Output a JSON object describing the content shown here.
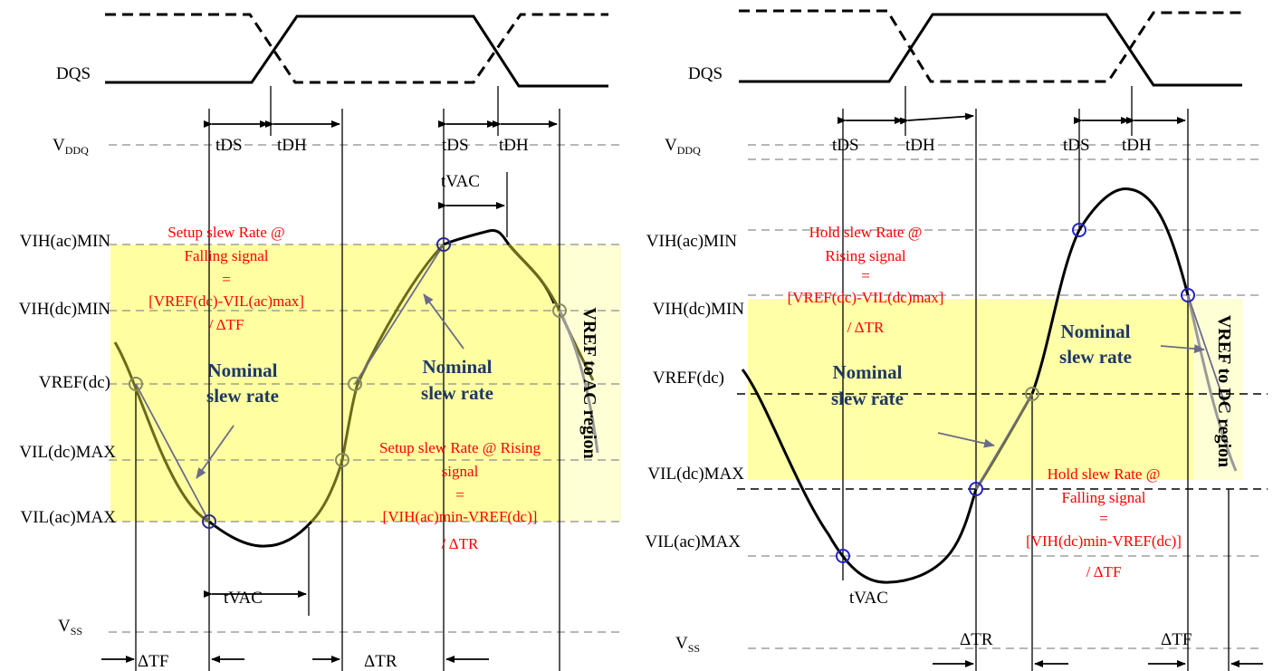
{
  "left_panel": {
    "dqs_label": "DQS",
    "vddq_main": "V",
    "vddq_sub": "DDQ",
    "vss_main": "V",
    "vss_sub": "SS",
    "levels": [
      "VIH(ac)MIN",
      "VIH(dc)MIN",
      "VREF(dc)",
      "VIL(dc)MAX",
      "VIL(ac)MAX"
    ],
    "timing": {
      "tds_1": "tDS",
      "tdh_1": "tDH",
      "tds_2": "tDS",
      "tdh_2": "tDH",
      "tvac_top": "tVAC",
      "tvac_bottom": "tVAC",
      "dtf": "ΔTF",
      "dtr": "ΔTR"
    },
    "setup_falling": [
      "Setup slew Rate @",
      "Falling signal",
      "=",
      "[VREF(dc)-VIL(ac)max]",
      "/ ΔTF"
    ],
    "setup_rising": [
      "Setup slew Rate @ Rising",
      "signal",
      "=",
      "[VIH(ac)min-VREF(dc)]",
      "/ ΔTR"
    ],
    "nominal_1": [
      "Nominal",
      "slew rate"
    ],
    "nominal_2": [
      "Nominal",
      "slew rate"
    ],
    "region": "VREF to AC region",
    "colors": {
      "region_fill": "#ffff99",
      "waveform": "#6b6b1a",
      "marker": "#8a8a5c"
    }
  },
  "right_panel": {
    "dqs_label": "DQS",
    "vddq_main": "V",
    "vddq_sub": "DDQ",
    "vss_main": "V",
    "vss_sub": "SS",
    "levels": [
      "VIH(ac)MIN",
      "VIH(dc)MIN",
      "VREF(dc)",
      "VIL(dc)MAX",
      "VIL(ac)MAX"
    ],
    "timing": {
      "tds_1": "tDS",
      "tdh_1": "tDH",
      "tds_2": "tDS",
      "tdh_2": "tDH",
      "tvac": "tVAC",
      "dtr": "ΔTR",
      "dtf": "ΔTF"
    },
    "hold_rising": [
      "Hold slew Rate @",
      "Rising signal",
      "=",
      "[VREF(dc)-VIL(dc)max]",
      "/ ΔTR"
    ],
    "hold_falling": [
      "Hold slew Rate @",
      "Falling signal",
      "=",
      "[VIH(dc)min-VREF(dc)]",
      "/ ΔTF"
    ],
    "nominal_1": [
      "Nominal",
      "slew rate"
    ],
    "nominal_2": [
      "Nominal",
      "slew rate"
    ],
    "region": "VREF to DC region",
    "colors": {
      "region_fill": "#ffff99",
      "waveform": "#6b6b1a",
      "marker": "#2222cc"
    }
  }
}
